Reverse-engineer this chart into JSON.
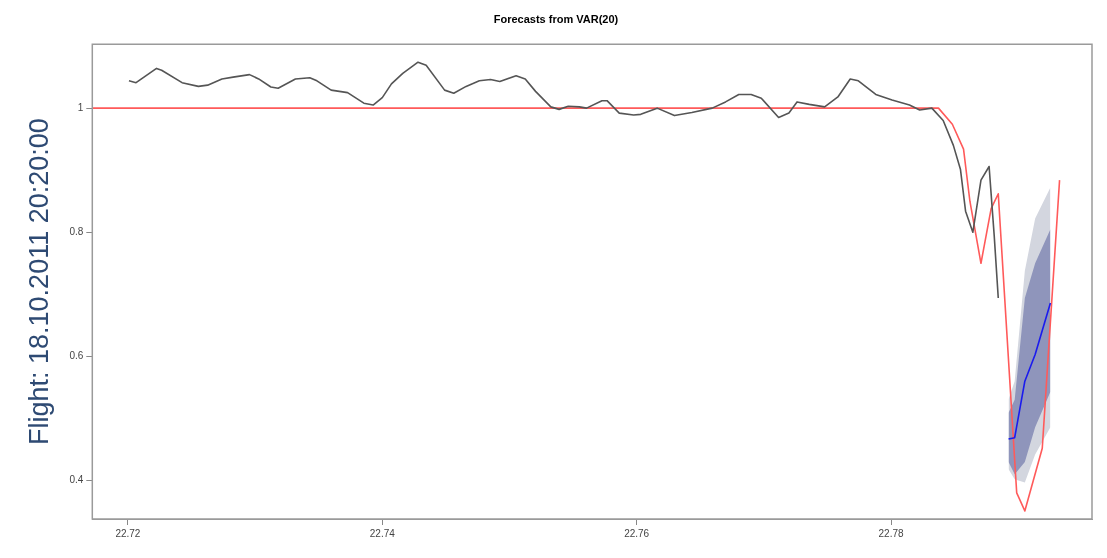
{
  "chart_data": {
    "type": "line",
    "title": "Forecasts from VAR(20)",
    "ylabel": "Flight: 18.10.2011 20:20:00",
    "xlim": [
      22.7172,
      22.7958
    ],
    "xticks": [
      22.72,
      22.74,
      22.76,
      22.78
    ],
    "ylim": [
      0.338,
      1.103
    ],
    "yticks": [
      0.4,
      0.6,
      0.8,
      1.0
    ],
    "grid": false,
    "legend": false,
    "marker": "none",
    "line_style": "solid",
    "series": [
      {
        "color": "#d3d6df",
        "x": [
          22.78924,
          22.78972,
          22.79052,
          22.79133,
          22.79253
        ],
        "values": [
          null,
          null,
          null,
          null,
          null
        ],
        "lower": [
          0.418,
          0.402,
          0.397,
          0.442,
          0.486
        ],
        "upper": [
          0.531,
          0.56,
          0.738,
          0.822,
          0.872
        ]
      },
      {
        "color": "#8f95bb",
        "x": [
          22.78924,
          22.78972,
          22.79052,
          22.79133,
          22.79253
        ],
        "values": [
          null,
          null,
          null,
          null,
          null
        ],
        "lower": [
          0.43,
          0.41,
          0.43,
          0.486,
          0.543
        ],
        "upper": [
          0.509,
          0.53,
          0.694,
          0.75,
          0.805
        ]
      },
      {
        "color": "#ff5a5a",
        "x": [
          22.7172,
          22.78373,
          22.78482,
          22.7857,
          22.7862,
          22.78707,
          22.78787,
          22.78843,
          22.78988,
          22.79052,
          22.79189,
          22.79325
        ],
        "values": [
          1.0,
          1.0,
          0.974,
          0.934,
          0.85,
          0.75,
          0.838,
          0.862,
          0.38,
          0.351,
          0.452,
          0.884
        ]
      },
      {
        "color": "#555555",
        "x": [
          22.72008,
          22.72064,
          22.72225,
          22.72265,
          22.72426,
          22.72554,
          22.72627,
          22.72739,
          22.72827,
          22.72956,
          22.73028,
          22.73124,
          22.73181,
          22.73317,
          22.7343,
          22.73486,
          22.73598,
          22.73727,
          22.73855,
          22.73928,
          22.74,
          22.74072,
          22.74161,
          22.74281,
          22.74345,
          22.7449,
          22.74562,
          22.74659,
          22.74763,
          22.74851,
          22.74924,
          22.75052,
          22.75124,
          22.75205,
          22.75325,
          22.7539,
          22.75462,
          22.7555,
          22.75606,
          22.75727,
          22.75767,
          22.75863,
          22.75976,
          22.76032,
          22.76161,
          22.76297,
          22.76434,
          22.76594,
          22.76699,
          22.76803,
          22.769,
          22.7698,
          22.77116,
          22.77197,
          22.77261,
          22.77357,
          22.77478,
          22.77582,
          22.77679,
          22.77743,
          22.7788,
          22.78008,
          22.78145,
          22.78225,
          22.78321,
          22.7841,
          22.7849,
          22.78546,
          22.78586,
          22.78643,
          22.78707,
          22.78771,
          22.78811,
          22.78843
        ],
        "values": [
          1.044,
          1.041,
          1.064,
          1.061,
          1.041,
          1.035,
          1.037,
          1.047,
          1.05,
          1.054,
          1.047,
          1.034,
          1.032,
          1.047,
          1.049,
          1.044,
          1.029,
          1.025,
          1.008,
          1.005,
          1.017,
          1.039,
          1.056,
          1.074,
          1.069,
          1.029,
          1.024,
          1.035,
          1.044,
          1.046,
          1.043,
          1.052,
          1.047,
          1.027,
          1.002,
          0.998,
          1.003,
          1.002,
          1.0,
          1.012,
          1.012,
          0.992,
          0.989,
          0.99,
          1.0,
          0.988,
          0.993,
          1.0,
          1.01,
          1.022,
          1.022,
          1.016,
          0.985,
          0.992,
          1.01,
          1.006,
          1.002,
          1.018,
          1.047,
          1.044,
          1.022,
          1.013,
          1.005,
          0.997,
          1.0,
          0.98,
          0.94,
          0.901,
          0.834,
          0.8,
          0.884,
          0.906,
          0.795,
          0.694
        ]
      },
      {
        "color": "#1a1aee",
        "x": [
          22.78924,
          22.78972,
          22.79052,
          22.79133,
          22.79253
        ],
        "values": [
          0.467,
          0.469,
          0.56,
          0.603,
          0.686
        ]
      }
    ]
  }
}
